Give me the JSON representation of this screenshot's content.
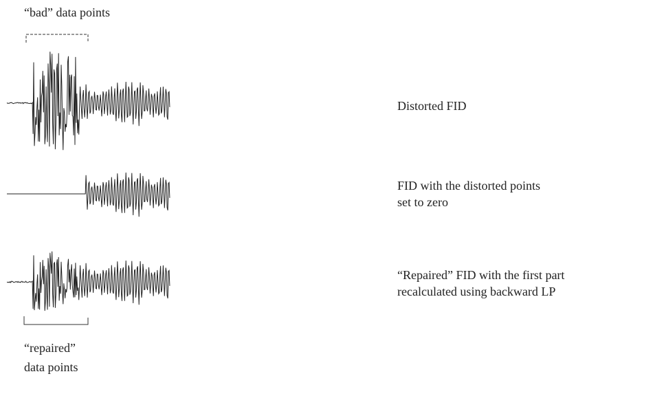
{
  "labels": {
    "bad": "“bad” data points",
    "repaired": [
      "“repaired”",
      "data points"
    ]
  },
  "traces": [
    {
      "label": [
        "Distorted FID"
      ]
    },
    {
      "label": [
        "FID with the distorted points",
        "set to zero"
      ]
    },
    {
      "label": [
        "“Repaired” FID with the first part",
        "recalculated using backward LP"
      ]
    }
  ]
}
